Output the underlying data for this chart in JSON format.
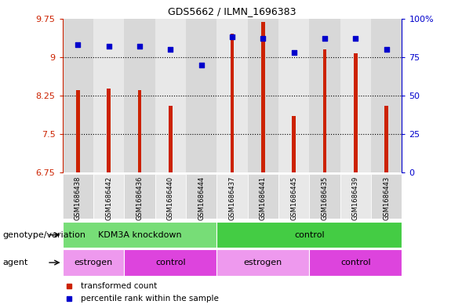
{
  "title": "GDS5662 / ILMN_1696383",
  "samples": [
    "GSM1686438",
    "GSM1686442",
    "GSM1686436",
    "GSM1686440",
    "GSM1686444",
    "GSM1686437",
    "GSM1686441",
    "GSM1686445",
    "GSM1686435",
    "GSM1686439",
    "GSM1686443"
  ],
  "bar_values": [
    8.35,
    8.38,
    8.35,
    8.05,
    6.72,
    9.45,
    9.68,
    7.85,
    9.15,
    9.07,
    8.05
  ],
  "dot_values": [
    83,
    82,
    82,
    80,
    70,
    88,
    87,
    78,
    87,
    87,
    80
  ],
  "bar_color": "#cc2200",
  "dot_color": "#0000cc",
  "ylim_left": [
    6.75,
    9.75
  ],
  "ylim_right": [
    0,
    100
  ],
  "yticks_left": [
    6.75,
    7.5,
    8.25,
    9.0,
    9.75
  ],
  "yticks_right": [
    0,
    25,
    50,
    75,
    100
  ],
  "ytick_labels_left": [
    "6.75",
    "7.5",
    "8.25",
    "9",
    "9.75"
  ],
  "ytick_labels_right": [
    "0",
    "25",
    "50",
    "75",
    "100%"
  ],
  "hlines": [
    7.5,
    8.25,
    9.0
  ],
  "genotype_groups": [
    {
      "label": "KDM3A knockdown",
      "start": 0,
      "end": 5,
      "color": "#77dd77"
    },
    {
      "label": "control",
      "start": 5,
      "end": 11,
      "color": "#44cc44"
    }
  ],
  "agent_groups": [
    {
      "label": "estrogen",
      "start": 0,
      "end": 2,
      "color": "#ee99ee"
    },
    {
      "label": "control",
      "start": 2,
      "end": 5,
      "color": "#dd44dd"
    },
    {
      "label": "estrogen",
      "start": 5,
      "end": 8,
      "color": "#ee99ee"
    },
    {
      "label": "control",
      "start": 8,
      "end": 11,
      "color": "#dd44dd"
    }
  ],
  "legend_items": [
    {
      "label": "transformed count",
      "color": "#cc2200"
    },
    {
      "label": "percentile rank within the sample",
      "color": "#0000cc"
    }
  ],
  "xlabel_genotype": "genotype/variation",
  "xlabel_agent": "agent",
  "bar_bottom": 6.75,
  "bar_width": 0.12,
  "sample_bg_colors": [
    "#cccccc",
    "#bbbbbb"
  ],
  "bg_color": "#ffffff"
}
